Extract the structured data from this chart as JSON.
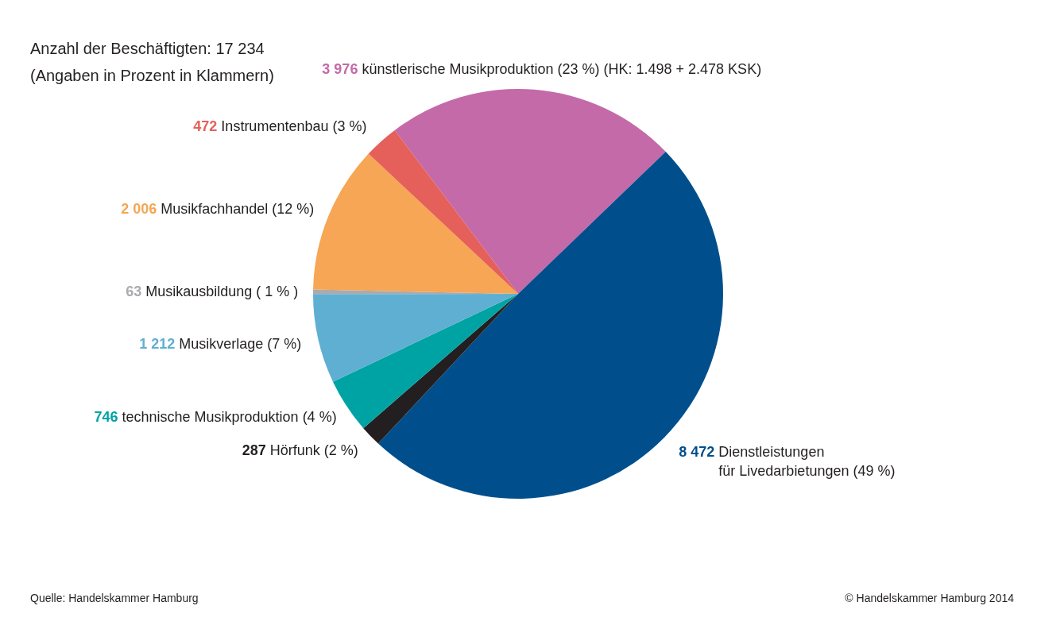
{
  "chart_data": {
    "type": "pie",
    "title": "Anzahl der Beschäftigten: 17 234",
    "subtitle": "(Angaben in Prozent in Klammern)",
    "categories": [
      "künstlerische Musikproduktion (23 %) (HK: 1.498 + 2.478 KSK)",
      "Dienstleistungen\nfür Livedarbietungen (49 %)",
      "Hörfunk (2 %)",
      "technische Musikproduktion (4 %)",
      "Musikverlage (7 %)",
      "Musikausbildung ( 1 % )",
      "Musikfachhandel (12 %)",
      "Instrumentenbau (3 %)"
    ],
    "values": [
      3976,
      8472,
      287,
      746,
      1212,
      63,
      2006,
      472
    ],
    "value_labels": [
      "3 976",
      "8 472",
      "287",
      "746",
      "1 212",
      "63",
      "2 006",
      "472"
    ],
    "colors": [
      "#c46aa8",
      "#004f8c",
      "#231f20",
      "#00a3a4",
      "#5fafd3",
      "#a9abae",
      "#f6a654",
      "#e5605a"
    ],
    "annotations": [
      "Quelle: Handelskammer Hamburg",
      "© Handelskammer Hamburg 2014"
    ]
  }
}
